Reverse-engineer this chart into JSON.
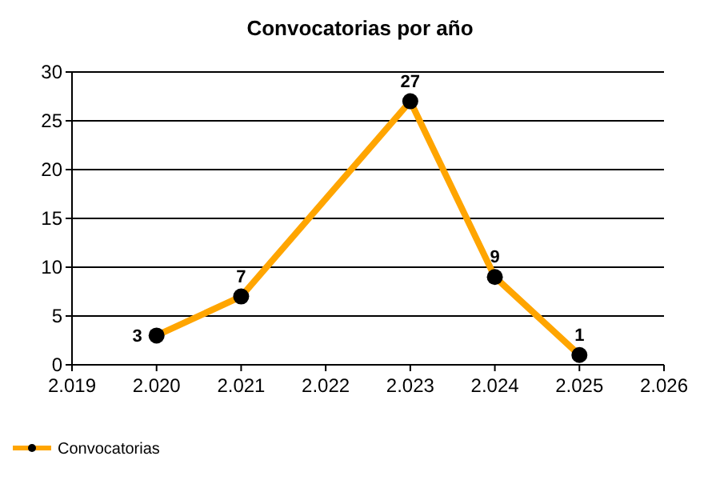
{
  "chart_data": {
    "type": "line",
    "title": "Convocatorias por año",
    "x": [
      2020,
      2021,
      2023,
      2024,
      2025
    ],
    "series": [
      {
        "name": "Convocatorias",
        "color": "#ffa500",
        "values": [
          3,
          7,
          27,
          9,
          1
        ]
      }
    ],
    "xlim": [
      2019,
      2026
    ],
    "xticks": [
      {
        "value": 2019,
        "label": "2.019"
      },
      {
        "value": 2020,
        "label": "2.020"
      },
      {
        "value": 2021,
        "label": "2.021"
      },
      {
        "value": 2022,
        "label": "2.022"
      },
      {
        "value": 2023,
        "label": "2.023"
      },
      {
        "value": 2024,
        "label": "2.024"
      },
      {
        "value": 2025,
        "label": "2.025"
      },
      {
        "value": 2026,
        "label": "2.026"
      }
    ],
    "ylim": [
      0,
      30
    ],
    "yticks": [
      0,
      5,
      10,
      15,
      20,
      25,
      30
    ],
    "grid": "y",
    "legend": "bottom left",
    "marker": "circle",
    "line_style": "solid",
    "data_labels": true
  }
}
